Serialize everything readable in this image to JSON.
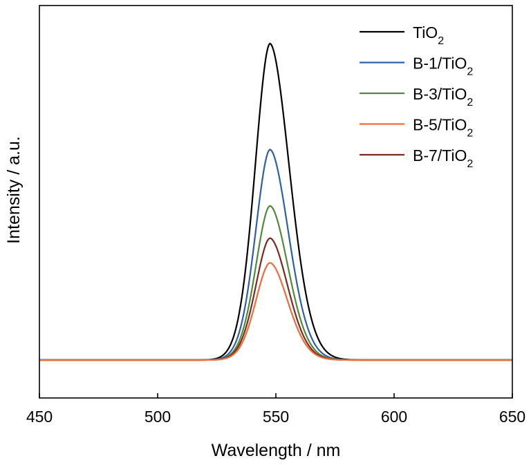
{
  "chart_data": {
    "type": "line",
    "xlabel": "Wavelength / nm",
    "ylabel": "Intensity / a.u.",
    "xlim": [
      450,
      650
    ],
    "xticks": [
      "450",
      "500",
      "550",
      "600",
      "650"
    ],
    "yticks_shown": false,
    "grid": false,
    "legend_position": "top-right",
    "ylim": [
      -0.12,
      1.12
    ],
    "baseline": 0,
    "series": [
      {
        "name": "TiO",
        "subscript": "2",
        "color": "#000000",
        "peak_x": 547.5,
        "peak_y": 1.0,
        "width_left": 6.3,
        "width_right": 8.2
      },
      {
        "name": "B-1/TiO",
        "subscript": "2",
        "color": "#2e5fa6",
        "peak_x": 547.5,
        "peak_y": 0.665,
        "width_left": 6.1,
        "width_right": 7.8
      },
      {
        "name": "B-3/TiO",
        "subscript": "2",
        "color": "#4f8a3c",
        "peak_x": 547.5,
        "peak_y": 0.487,
        "width_left": 6.0,
        "width_right": 7.6
      },
      {
        "name": "B-5/TiO",
        "subscript": "2",
        "color": "#ee6b3a",
        "peak_x": 547.5,
        "peak_y": 0.307,
        "width_left": 6.0,
        "width_right": 7.5
      },
      {
        "name": "B-7/TiO",
        "subscript": "2",
        "color": "#7a2a1c",
        "peak_x": 547.5,
        "peak_y": 0.385,
        "width_left": 6.0,
        "width_right": 7.5
      }
    ]
  }
}
